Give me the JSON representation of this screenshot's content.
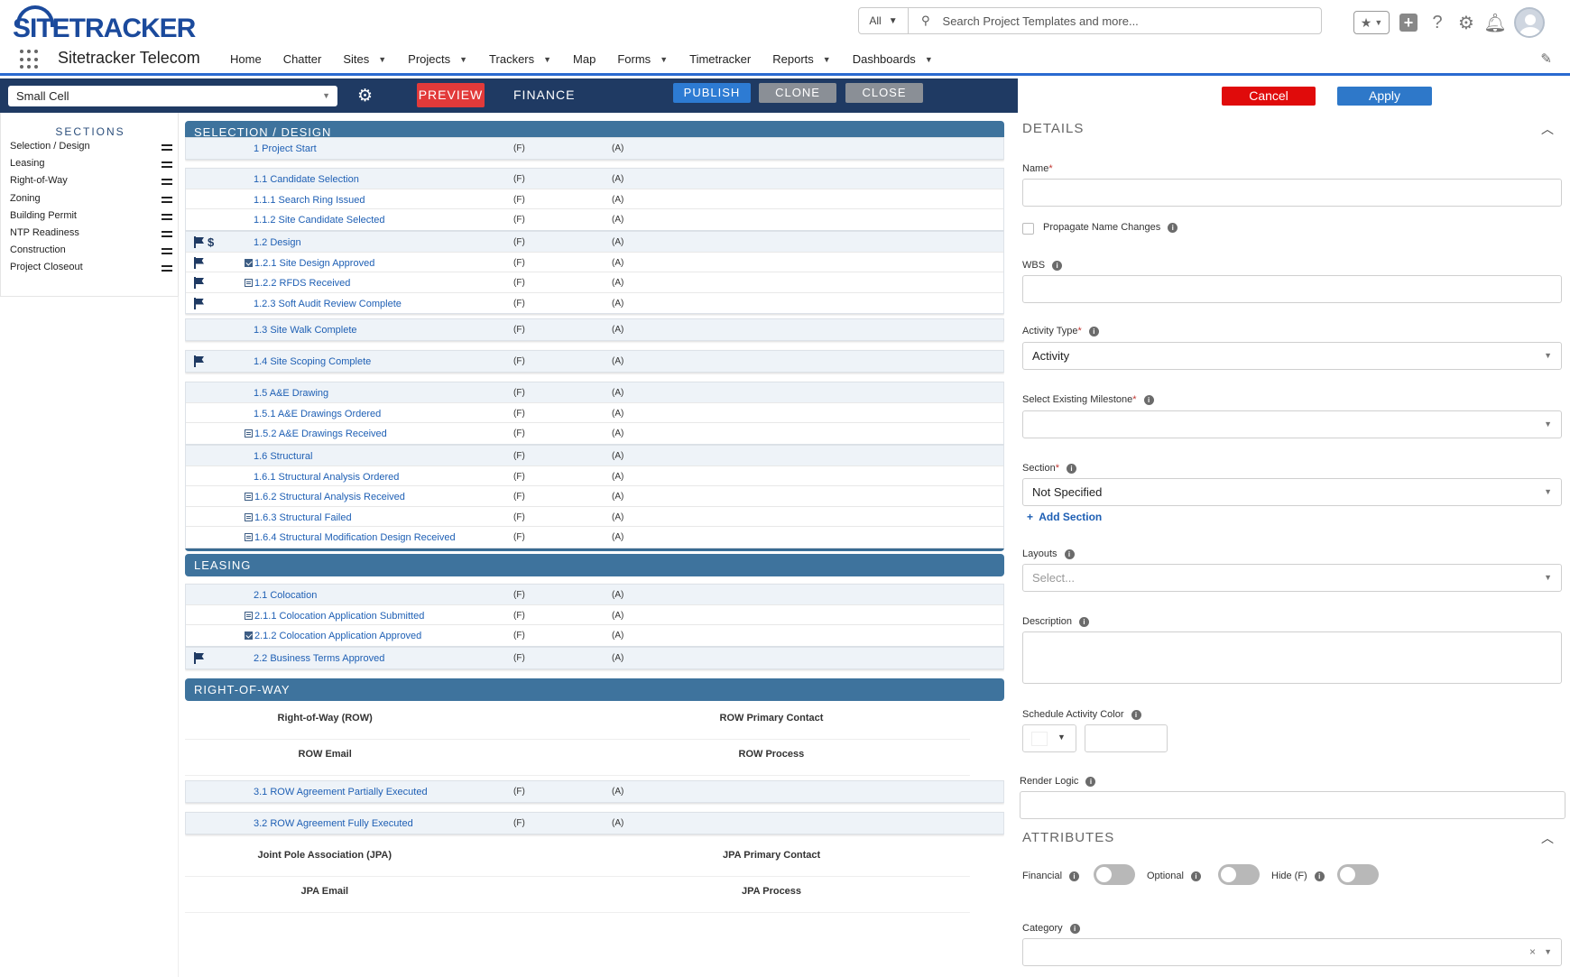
{
  "header": {
    "logo_text": "SITETRACKER",
    "search_scope": "All",
    "search_placeholder": "Search Project Templates and more..."
  },
  "nav": {
    "app_name": "Sitetracker Telecom",
    "items": [
      {
        "label": "Home",
        "dropdown": false
      },
      {
        "label": "Chatter",
        "dropdown": false
      },
      {
        "label": "Sites",
        "dropdown": true
      },
      {
        "label": "Projects",
        "dropdown": true
      },
      {
        "label": "Trackers",
        "dropdown": true
      },
      {
        "label": "Map",
        "dropdown": false
      },
      {
        "label": "Forms",
        "dropdown": true
      },
      {
        "label": "Timetracker",
        "dropdown": false
      },
      {
        "label": "Reports",
        "dropdown": true
      },
      {
        "label": "Dashboards",
        "dropdown": true
      }
    ]
  },
  "toolbar": {
    "template_value": "Small Cell",
    "preview_label": "PREVIEW",
    "finance_label": "FINANCE",
    "publish_label": "PUBLISH",
    "clone_label": "CLONE",
    "close_label": "CLOSE"
  },
  "actions": {
    "cancel_label": "Cancel",
    "apply_label": "Apply"
  },
  "sidebar": {
    "title": "SECTIONS",
    "items": [
      "Selection / Design",
      "Leasing",
      "Right-of-Way",
      "Zoning",
      "Building Permit",
      "NTP Readiness",
      "Construction",
      "Project Closeout"
    ]
  },
  "list": {
    "f_marker": "(F)",
    "a_marker": "(A)",
    "sections": [
      {
        "title": "SELECTION / DESIGN"
      },
      {
        "title": "LEASING"
      },
      {
        "title": "RIGHT-OF-WAY"
      }
    ],
    "groups": [
      [
        {
          "name": "1 Project Start"
        }
      ],
      [
        {
          "name": "1.1 Candidate Selection"
        },
        {
          "name": "1.1.1 Search Ring Issued"
        },
        {
          "name": "1.1.2 Site Candidate Selected"
        }
      ],
      [
        {
          "name": "1.2 Design",
          "flag": true,
          "dollar": true
        },
        {
          "name": "1.2.1 Site Design Approved",
          "flag": true,
          "icon": "tick"
        },
        {
          "name": "1.2.2 RFDS Received",
          "flag": true,
          "icon": "doc"
        },
        {
          "name": "1.2.3 Soft Audit Review Complete",
          "flag": true
        }
      ],
      [
        {
          "name": "1.3 Site Walk Complete"
        }
      ],
      [
        {
          "name": "1.4 Site Scoping Complete",
          "flag": true
        }
      ],
      [
        {
          "name": "1.5 A&E Drawing"
        },
        {
          "name": "1.5.1 A&E Drawings Ordered"
        },
        {
          "name": "1.5.2 A&E Drawings Received",
          "icon": "doc"
        }
      ],
      [
        {
          "name": "1.6 Structural"
        },
        {
          "name": "1.6.1 Structural Analysis Ordered"
        },
        {
          "name": "1.6.2 Structural Analysis Received",
          "icon": "doc"
        },
        {
          "name": "1.6.3 Structural Failed",
          "icon": "doc"
        },
        {
          "name": "1.6.4 Structural Modification Design Received",
          "icon": "doc"
        }
      ],
      [
        {
          "name": "2.1 Colocation"
        },
        {
          "name": "2.1.1 Colocation Application Submitted",
          "icon": "doc"
        },
        {
          "name": "2.1.2 Colocation Application Approved",
          "icon": "tick"
        }
      ],
      [
        {
          "name": "2.2 Business Terms Approved",
          "flag": true
        }
      ],
      [
        {
          "name": "3.1 ROW Agreement Partially Executed"
        }
      ],
      [
        {
          "name": "3.2 ROW Agreement Fully Executed"
        }
      ]
    ],
    "fields": [
      {
        "left": "Right-of-Way (ROW)",
        "right": "ROW Primary Contact"
      },
      {
        "left": "ROW Email",
        "right": "ROW Process"
      },
      {
        "left": "Joint Pole Association (JPA)",
        "right": "JPA Primary Contact"
      },
      {
        "left": "JPA Email",
        "right": "JPA Process"
      }
    ]
  },
  "details": {
    "title": "DETAILS",
    "name_label": "Name",
    "propagate_label": "Propagate Name Changes",
    "wbs_label": "WBS",
    "activity_type_label": "Activity Type",
    "activity_type_value": "Activity",
    "milestone_label": "Select Existing Milestone",
    "section_label": "Section",
    "section_value": "Not Specified",
    "add_section_label": "Add Section",
    "layouts_label": "Layouts",
    "layouts_placeholder": "Select...",
    "description_label": "Description",
    "color_label": "Schedule Activity Color",
    "render_logic_label": "Render Logic"
  },
  "attributes": {
    "title": "ATTRIBUTES",
    "financial_label": "Financial",
    "optional_label": "Optional",
    "hide_label": "Hide (F)",
    "category_label": "Category"
  }
}
